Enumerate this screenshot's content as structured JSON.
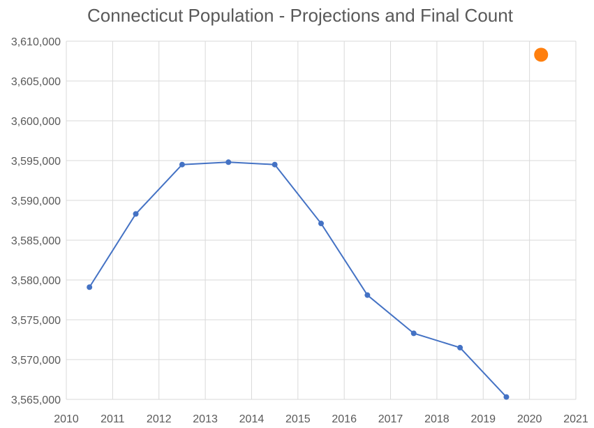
{
  "chart_data": {
    "type": "scatter",
    "title": "Connecticut Population - Projections and Final Count",
    "xlabel": "",
    "ylabel": "",
    "xlim": [
      2010,
      2021
    ],
    "ylim": [
      3565000,
      3610000
    ],
    "x_ticks": [
      "2010",
      "2011",
      "2012",
      "2013",
      "2014",
      "2015",
      "2016",
      "2017",
      "2018",
      "2019",
      "2020",
      "2021"
    ],
    "y_ticks": [
      "3,565,000",
      "3,570,000",
      "3,575,000",
      "3,580,000",
      "3,585,000",
      "3,590,000",
      "3,595,000",
      "3,600,000",
      "3,605,000",
      "3,610,000"
    ],
    "grid": true,
    "legend": "none",
    "series": [
      {
        "style": "line-markers",
        "color": "#4472C4",
        "x": [
          2010.5,
          2011.5,
          2012.5,
          2013.5,
          2014.5,
          2015.5,
          2016.5,
          2017.5,
          2018.5,
          2019.5
        ],
        "y": [
          3579100,
          3588300,
          3594500,
          3594800,
          3594500,
          3587100,
          3578100,
          3573300,
          3571500,
          3565300
        ]
      },
      {
        "style": "marker",
        "color": "#FF7F0E",
        "x": [
          2020.25
        ],
        "y": [
          3608300
        ]
      }
    ]
  }
}
